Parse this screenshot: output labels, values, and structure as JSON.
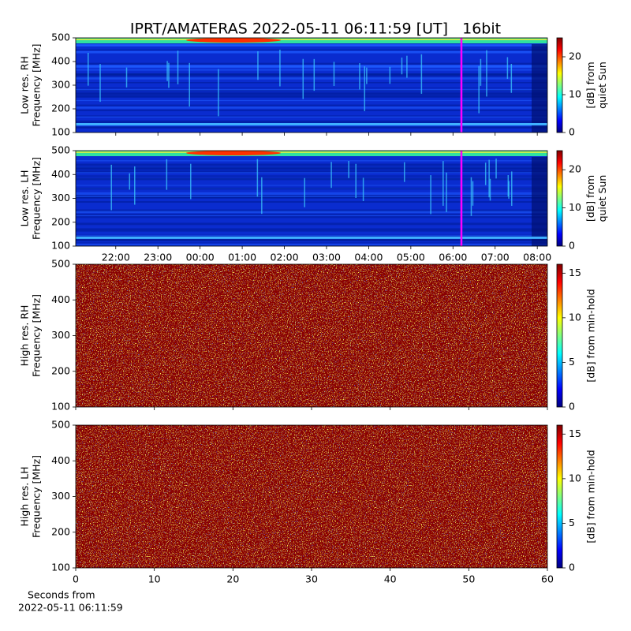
{
  "title": "IPRT/AMATERAS 2022-05-11 06:11:59 [UT]   16bit",
  "chart_data": [
    {
      "type": "spectrogram",
      "ylabel": [
        "Low res. RH",
        "Frequency [MHz]"
      ],
      "ylim": [
        100,
        500
      ],
      "yticks": [
        100,
        200,
        300,
        400,
        500
      ],
      "xlim": [
        21.05,
        32.24
      ],
      "marker_x": 30.2,
      "marker_color": "#ff00ff",
      "colorbar_label": [
        "[dB] from",
        "quiet Sun"
      ],
      "clim": [
        0,
        25
      ],
      "cticks": [
        0,
        10,
        20
      ],
      "colormap": "jet"
    },
    {
      "type": "spectrogram",
      "ylabel": [
        "Low res. LH",
        "Frequency [MHz]"
      ],
      "ylim": [
        100,
        500
      ],
      "yticks": [
        100,
        200,
        300,
        400,
        500
      ],
      "xlim": [
        21.05,
        32.24
      ],
      "marker_x": 30.2,
      "marker_color": "#ff00ff",
      "xticks": [
        {
          "value": 22,
          "label": "22:00"
        },
        {
          "value": 23,
          "label": "23:00"
        },
        {
          "value": 24,
          "label": "00:00"
        },
        {
          "value": 25,
          "label": "01:00"
        },
        {
          "value": 26,
          "label": "02:00"
        },
        {
          "value": 27,
          "label": "03:00"
        },
        {
          "value": 28,
          "label": "04:00"
        },
        {
          "value": 29,
          "label": "05:00"
        },
        {
          "value": 30,
          "label": "06:00"
        },
        {
          "value": 31,
          "label": "07:00"
        },
        {
          "value": 32,
          "label": "08:00"
        }
      ],
      "colorbar_label": [
        "[dB] from",
        "quiet Sun"
      ],
      "clim": [
        0,
        25
      ],
      "cticks": [
        0,
        10,
        20
      ],
      "colormap": "jet"
    },
    {
      "type": "spectrogram",
      "ylabel": [
        "High res. RH",
        "Frequency [MHz]"
      ],
      "ylim": [
        100,
        500
      ],
      "yticks": [
        100,
        200,
        300,
        400,
        500
      ],
      "xlim": [
        0,
        60
      ],
      "colorbar_label": [
        "[dB] from min-hold"
      ],
      "clim": [
        0,
        16
      ],
      "cticks": [
        0,
        5,
        10,
        15
      ],
      "colormap": "jet"
    },
    {
      "type": "spectrogram",
      "ylabel": [
        "High res. LH",
        "Frequency [MHz]"
      ],
      "ylim": [
        100,
        500
      ],
      "yticks": [
        100,
        200,
        300,
        400,
        500
      ],
      "xlim": [
        0,
        60
      ],
      "xticks": [
        0,
        10,
        20,
        30,
        40,
        50,
        60
      ],
      "xlabel": [
        "Seconds from",
        "2022-05-11 06:11:59"
      ],
      "colorbar_label": [
        "[dB] from min-hold"
      ],
      "clim": [
        0,
        16
      ],
      "cticks": [
        0,
        5,
        10,
        15
      ],
      "colormap": "jet"
    }
  ]
}
